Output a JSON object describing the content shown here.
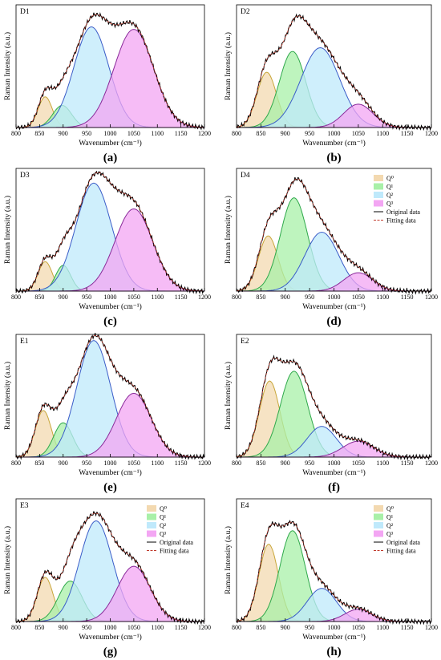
{
  "figure": {
    "legend_items": [
      {
        "label": "Q⁰",
        "series": "q0"
      },
      {
        "label": "Q¹",
        "series": "q1"
      },
      {
        "label": "Q²",
        "series": "q2"
      },
      {
        "label": "Q³",
        "series": "q3"
      },
      {
        "label": "Original data",
        "series": "original"
      },
      {
        "label": "Fitting data",
        "series": "fitting"
      }
    ],
    "colors": {
      "q0": {
        "fill": "#f3d9b0",
        "stroke": "#c8a63a"
      },
      "q1": {
        "fill": "#a8f0a8",
        "stroke": "#2ea84a"
      },
      "q2": {
        "fill": "#bfe9fb",
        "stroke": "#3a5cc8"
      },
      "q3": {
        "fill": "#f3a6f3",
        "stroke": "#8a2a9a"
      },
      "original": "#000000",
      "fitting": "#c0392b"
    }
  },
  "chart_data": [
    {
      "type": "area",
      "title": "D1",
      "panel_label": "(a)",
      "xlabel": "Wavenumber (cm⁻¹)",
      "ylabel": "Raman Intensity (a.u.)",
      "xlim": [
        800,
        1200
      ],
      "xticks": [
        800,
        850,
        900,
        950,
        1000,
        1050,
        1100,
        1150,
        1200
      ],
      "legend": false,
      "series": [
        {
          "name": "Q⁰",
          "key": "q0",
          "center": 862,
          "height": 0.25,
          "width": 15
        },
        {
          "name": "Q¹",
          "key": "q1",
          "center": 898,
          "height": 0.18,
          "width": 20
        },
        {
          "name": "Q²",
          "key": "q2",
          "center": 960,
          "height": 0.82,
          "width": 37
        },
        {
          "name": "Q³",
          "key": "q3",
          "center": 1050,
          "height": 0.8,
          "width": 42
        }
      ]
    },
    {
      "type": "area",
      "title": "D2",
      "panel_label": "(b)",
      "xlabel": "Wavenumber (cm⁻¹)",
      "ylabel": "Raman Intensity (a.u.)",
      "xlim": [
        800,
        1200
      ],
      "xticks": [
        800,
        850,
        900,
        950,
        1000,
        1050,
        1100,
        1150,
        1200
      ],
      "legend": false,
      "series": [
        {
          "name": "Q⁰",
          "key": "q0",
          "center": 862,
          "height": 0.45,
          "width": 20
        },
        {
          "name": "Q¹",
          "key": "q1",
          "center": 915,
          "height": 0.62,
          "width": 27
        },
        {
          "name": "Q²",
          "key": "q2",
          "center": 972,
          "height": 0.65,
          "width": 40
        },
        {
          "name": "Q³",
          "key": "q3",
          "center": 1050,
          "height": 0.19,
          "width": 30
        }
      ]
    },
    {
      "type": "area",
      "title": "D3",
      "panel_label": "(c)",
      "xlabel": "Wavenumber (cm⁻¹)",
      "ylabel": "Raman Intensity (a.u.)",
      "xlim": [
        800,
        1200
      ],
      "xticks": [
        800,
        850,
        900,
        950,
        1000,
        1050,
        1100,
        1150,
        1200
      ],
      "legend": false,
      "series": [
        {
          "name": "Q⁰",
          "key": "q0",
          "center": 862,
          "height": 0.24,
          "width": 15
        },
        {
          "name": "Q¹",
          "key": "q1",
          "center": 900,
          "height": 0.21,
          "width": 16
        },
        {
          "name": "Q²",
          "key": "q2",
          "center": 965,
          "height": 0.88,
          "width": 38
        },
        {
          "name": "Q³",
          "key": "q3",
          "center": 1050,
          "height": 0.67,
          "width": 40
        }
      ]
    },
    {
      "type": "area",
      "title": "D4",
      "panel_label": "(d)",
      "xlabel": "Wavenumber (cm⁻¹)",
      "ylabel": "Raman Intensity (a.u.)",
      "xlim": [
        800,
        1200
      ],
      "xticks": [
        800,
        850,
        900,
        950,
        1000,
        1050,
        1100,
        1150,
        1200
      ],
      "legend": true,
      "series": [
        {
          "name": "Q⁰",
          "key": "q0",
          "center": 865,
          "height": 0.45,
          "width": 20
        },
        {
          "name": "Q¹",
          "key": "q1",
          "center": 918,
          "height": 0.76,
          "width": 28
        },
        {
          "name": "Q²",
          "key": "q2",
          "center": 975,
          "height": 0.48,
          "width": 35
        },
        {
          "name": "Q³",
          "key": "q3",
          "center": 1050,
          "height": 0.15,
          "width": 30
        }
      ]
    },
    {
      "type": "area",
      "title": "E1",
      "panel_label": "(e)",
      "xlabel": "Wavenumber (cm⁻¹)",
      "ylabel": "Raman Intensity (a.u.)",
      "xlim": [
        800,
        1200
      ],
      "xticks": [
        800,
        850,
        900,
        950,
        1000,
        1050,
        1100,
        1150,
        1200
      ],
      "legend": false,
      "series": [
        {
          "name": "Q⁰",
          "key": "q0",
          "center": 858,
          "height": 0.38,
          "width": 17
        },
        {
          "name": "Q¹",
          "key": "q1",
          "center": 900,
          "height": 0.28,
          "width": 20
        },
        {
          "name": "Q²",
          "key": "q2",
          "center": 965,
          "height": 0.95,
          "width": 36
        },
        {
          "name": "Q³",
          "key": "q3",
          "center": 1050,
          "height": 0.52,
          "width": 37
        }
      ]
    },
    {
      "type": "area",
      "title": "E2",
      "panel_label": "(f)",
      "xlabel": "Wavenumber (cm⁻¹)",
      "ylabel": "Raman Intensity (a.u.)",
      "xlim": [
        800,
        1200
      ],
      "xticks": [
        800,
        850,
        900,
        950,
        1000,
        1050,
        1100,
        1150,
        1200
      ],
      "legend": false,
      "series": [
        {
          "name": "Q⁰",
          "key": "q0",
          "center": 868,
          "height": 0.62,
          "width": 21
        },
        {
          "name": "Q¹",
          "key": "q1",
          "center": 918,
          "height": 0.7,
          "width": 28
        },
        {
          "name": "Q²",
          "key": "q2",
          "center": 975,
          "height": 0.25,
          "width": 30
        },
        {
          "name": "Q³",
          "key": "q3",
          "center": 1050,
          "height": 0.13,
          "width": 32
        }
      ]
    },
    {
      "type": "area",
      "title": "E3",
      "panel_label": "(g)",
      "xlabel": "Wavenumber (cm⁻¹)",
      "ylabel": "Raman Intensity (a.u.)",
      "xlim": [
        800,
        1200
      ],
      "xticks": [
        800,
        850,
        900,
        950,
        1000,
        1050,
        1100,
        1150,
        1200
      ],
      "legend": true,
      "series": [
        {
          "name": "Q⁰",
          "key": "q0",
          "center": 862,
          "height": 0.36,
          "width": 17
        },
        {
          "name": "Q¹",
          "key": "q1",
          "center": 915,
          "height": 0.33,
          "width": 25
        },
        {
          "name": "Q²",
          "key": "q2",
          "center": 970,
          "height": 0.82,
          "width": 35
        },
        {
          "name": "Q³",
          "key": "q3",
          "center": 1050,
          "height": 0.45,
          "width": 35
        }
      ]
    },
    {
      "type": "area",
      "title": "E4",
      "panel_label": "(h)",
      "xlabel": "Wavenumber (cm⁻¹)",
      "ylabel": "Raman Intensity (a.u.)",
      "xlim": [
        800,
        1200
      ],
      "xticks": [
        800,
        850,
        900,
        950,
        1000,
        1050,
        1100,
        1150,
        1200
      ],
      "legend": true,
      "series": [
        {
          "name": "Q⁰",
          "key": "q0",
          "center": 866,
          "height": 0.63,
          "width": 20
        },
        {
          "name": "Q¹",
          "key": "q1",
          "center": 915,
          "height": 0.74,
          "width": 26
        },
        {
          "name": "Q²",
          "key": "q2",
          "center": 975,
          "height": 0.27,
          "width": 30
        },
        {
          "name": "Q³",
          "key": "q3",
          "center": 1050,
          "height": 0.1,
          "width": 28
        }
      ]
    }
  ]
}
